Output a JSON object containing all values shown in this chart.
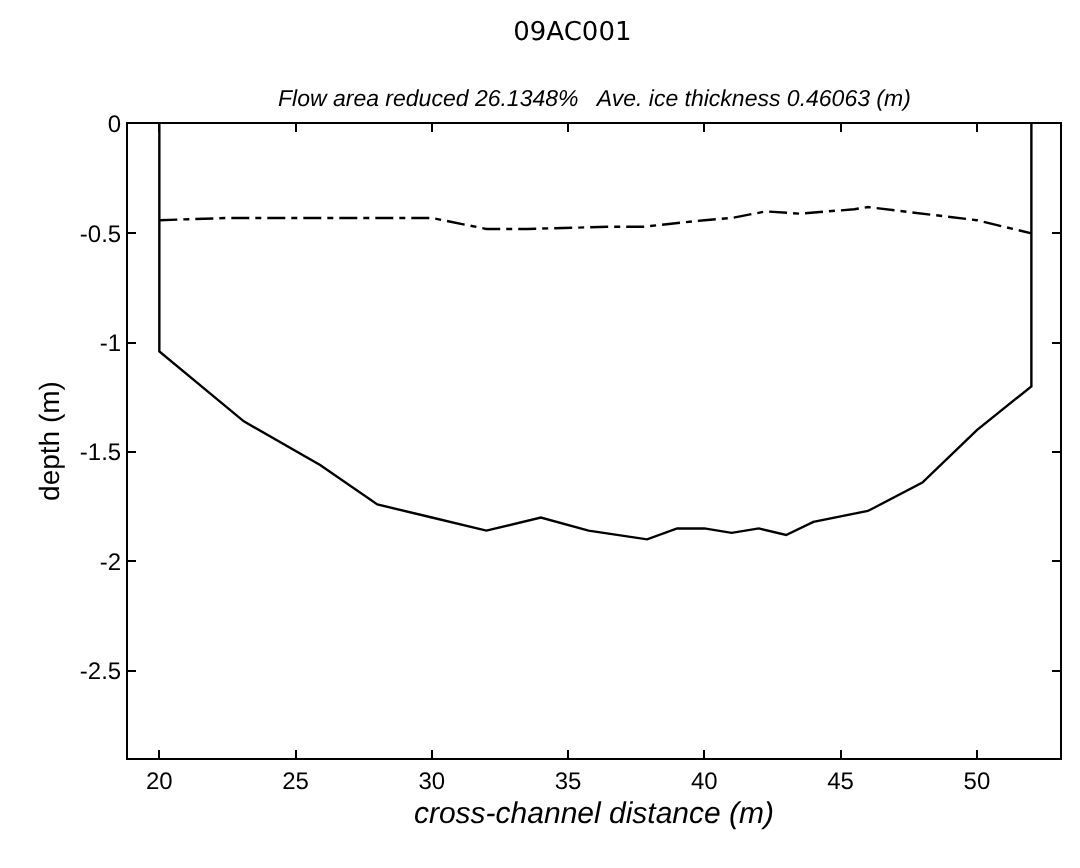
{
  "chart_data": {
    "type": "line",
    "title": "09AC001",
    "subtitle": "Flow area reduced 26.1348%   Ave. ice thickness 0.46063 (m)",
    "xlabel": "cross-channel distance (m)",
    "ylabel": "depth (m)",
    "xlim": [
      18.85,
      53.05
    ],
    "xticks": [
      20,
      25,
      30,
      35,
      40,
      45,
      50
    ],
    "ylim": [
      -2.9,
      0
    ],
    "yticks": [
      {
        "value": -2.5,
        "label": "-2.5"
      },
      {
        "value": -2,
        "label": "-2"
      },
      {
        "value": -1.5,
        "label": "-1.5"
      },
      {
        "value": -1,
        "label": "-1"
      },
      {
        "value": -0.5,
        "label": "-0.5"
      },
      0
    ],
    "grid": false,
    "marker": "none",
    "series": [
      {
        "color": "#000000",
        "line_style": "solid",
        "x": [
          20,
          20,
          23.1,
          25.9,
          28,
          30,
          32,
          34,
          35.75,
          37.9,
          39,
          40,
          41,
          42,
          43,
          44,
          46,
          48,
          50,
          52,
          52
        ],
        "values": [
          0,
          -1.04,
          -1.36,
          -1.56,
          -1.74,
          -1.8,
          -1.86,
          -1.8,
          -1.86,
          -1.9,
          -1.85,
          -1.85,
          -1.87,
          -1.85,
          -1.88,
          -1.82,
          -1.77,
          -1.64,
          -1.4,
          -1.2,
          0
        ]
      },
      {
        "color": "#000000",
        "line_style": "dashed",
        "x": [
          20,
          22.5,
          25,
          30,
          32,
          33.5,
          36.5,
          37.75,
          40,
          41,
          42.25,
          43.5,
          45.5,
          46,
          50,
          52
        ],
        "values": [
          -0.44,
          -0.43,
          -0.43,
          -0.43,
          -0.48,
          -0.48,
          -0.47,
          -0.47,
          -0.44,
          -0.43,
          -0.4,
          -0.41,
          -0.39,
          -0.38,
          -0.44,
          -0.5
        ]
      }
    ]
  }
}
